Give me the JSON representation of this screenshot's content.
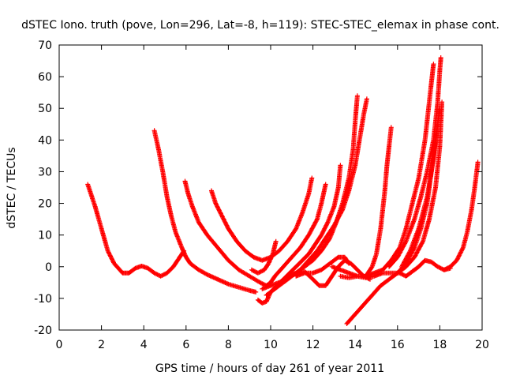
{
  "chart_data": {
    "type": "scatter",
    "title": "dSTEC Iono. truth (pove, Lon=296, Lat=-8, h=119): STEC-STEC_elemax in phase cont.",
    "xlabel": "GPS time / hours of day 261 of year 2011",
    "ylabel": "dSTEC  / TECUs",
    "xlim": [
      0,
      20
    ],
    "ylim": [
      -20,
      70
    ],
    "xticks": [
      "0",
      "2",
      "4",
      "6",
      "8",
      "10",
      "12",
      "14",
      "16",
      "18",
      "20"
    ],
    "yticks": [
      "-20",
      "-10",
      "0",
      "10",
      "20",
      "30",
      "40",
      "50",
      "60",
      "70"
    ],
    "grid": false,
    "legend": "none",
    "marker": "plus",
    "color": "#ff0000",
    "series": [
      {
        "points": [
          [
            1.35,
            26
          ],
          [
            1.5,
            23
          ],
          [
            1.7,
            19
          ],
          [
            2.0,
            12
          ],
          [
            2.3,
            5
          ],
          [
            2.6,
            1
          ],
          [
            3.0,
            -2
          ],
          [
            3.3,
            -2
          ],
          [
            3.6,
            -0.5
          ],
          [
            3.9,
            0.2
          ],
          [
            4.2,
            -0.5
          ],
          [
            4.5,
            -2
          ],
          [
            4.8,
            -3
          ],
          [
            5.1,
            -2
          ],
          [
            5.4,
            0
          ],
          [
            5.7,
            3
          ],
          [
            5.9,
            5
          ]
        ]
      },
      {
        "points": [
          [
            4.5,
            43
          ],
          [
            4.7,
            37
          ],
          [
            4.9,
            30
          ],
          [
            5.1,
            22
          ],
          [
            5.3,
            16
          ],
          [
            5.5,
            11
          ],
          [
            5.8,
            6
          ],
          [
            6.0,
            3
          ],
          [
            6.2,
            1
          ],
          [
            6.6,
            -1
          ],
          [
            7.0,
            -2.5
          ],
          [
            7.5,
            -4
          ],
          [
            8.0,
            -5.5
          ],
          [
            8.5,
            -6.5
          ],
          [
            9.0,
            -7.5
          ],
          [
            9.3,
            -8
          ]
        ]
      },
      {
        "points": [
          [
            5.95,
            27
          ],
          [
            6.1,
            23
          ],
          [
            6.3,
            19
          ],
          [
            6.6,
            14
          ],
          [
            7.0,
            10
          ],
          [
            7.5,
            6
          ],
          [
            8.0,
            2
          ],
          [
            8.5,
            -1
          ],
          [
            9.0,
            -3
          ],
          [
            9.5,
            -5
          ],
          [
            9.8,
            -6
          ],
          [
            10.0,
            -5
          ],
          [
            10.2,
            -3
          ],
          [
            10.6,
            0
          ],
          [
            11.0,
            3
          ],
          [
            11.4,
            6
          ],
          [
            11.8,
            10
          ],
          [
            12.2,
            15
          ],
          [
            12.4,
            20
          ],
          [
            12.6,
            26
          ]
        ]
      },
      {
        "points": [
          [
            7.2,
            24
          ],
          [
            7.4,
            20
          ],
          [
            7.7,
            16
          ],
          [
            8.0,
            12
          ],
          [
            8.4,
            8
          ],
          [
            8.8,
            5
          ],
          [
            9.2,
            3
          ],
          [
            9.6,
            2
          ],
          [
            10.0,
            3
          ],
          [
            10.4,
            5
          ],
          [
            10.8,
            8
          ],
          [
            11.2,
            12
          ],
          [
            11.5,
            17
          ],
          [
            11.8,
            23
          ],
          [
            11.95,
            28
          ]
        ]
      },
      {
        "points": [
          [
            9.1,
            -1
          ],
          [
            9.4,
            -2
          ],
          [
            9.7,
            -1
          ],
          [
            9.9,
            1
          ],
          [
            10.1,
            4
          ],
          [
            10.25,
            8
          ]
        ]
      },
      {
        "points": [
          [
            9.4,
            -10.5
          ],
          [
            9.6,
            -11.5
          ],
          [
            9.8,
            -11
          ],
          [
            10.0,
            -8
          ],
          [
            10.3,
            -6
          ],
          [
            10.6,
            -4
          ],
          [
            10.9,
            -2
          ],
          [
            11.2,
            0
          ],
          [
            11.5,
            2
          ],
          [
            11.8,
            4
          ],
          [
            12.1,
            7
          ],
          [
            12.4,
            10
          ],
          [
            12.7,
            14
          ],
          [
            13.0,
            19
          ],
          [
            13.2,
            25
          ],
          [
            13.3,
            32
          ]
        ]
      },
      {
        "points": [
          [
            9.6,
            -7
          ],
          [
            10.0,
            -6
          ],
          [
            10.4,
            -5
          ],
          [
            10.8,
            -3.5
          ],
          [
            11.2,
            -2
          ],
          [
            11.6,
            0
          ],
          [
            12.0,
            2
          ],
          [
            12.4,
            5
          ],
          [
            12.8,
            9
          ],
          [
            13.1,
            14
          ],
          [
            13.4,
            20
          ],
          [
            13.7,
            28
          ],
          [
            13.9,
            37
          ],
          [
            14.0,
            46
          ],
          [
            14.1,
            54
          ]
        ]
      },
      {
        "points": [
          [
            9.8,
            -9
          ],
          [
            10.2,
            -7
          ],
          [
            10.6,
            -5
          ],
          [
            11.0,
            -3
          ],
          [
            11.4,
            -1
          ],
          [
            11.8,
            2
          ],
          [
            12.2,
            5
          ],
          [
            12.6,
            9
          ],
          [
            13.0,
            13
          ],
          [
            13.4,
            18
          ],
          [
            13.7,
            24
          ],
          [
            14.0,
            32
          ],
          [
            14.2,
            40
          ],
          [
            14.4,
            48
          ],
          [
            14.55,
            53
          ]
        ]
      },
      {
        "points": [
          [
            10.8,
            -3
          ],
          [
            11.2,
            -2
          ],
          [
            11.6,
            -1.5
          ],
          [
            12.0,
            -4
          ],
          [
            12.3,
            -6
          ],
          [
            12.6,
            -6
          ],
          [
            12.9,
            -3
          ],
          [
            13.2,
            0
          ],
          [
            13.5,
            2
          ],
          [
            13.8,
            1
          ],
          [
            14.1,
            -1
          ],
          [
            14.4,
            -3
          ],
          [
            14.7,
            -4
          ]
        ]
      },
      {
        "points": [
          [
            11.2,
            -3
          ],
          [
            11.6,
            -2
          ],
          [
            12.0,
            -2
          ],
          [
            12.4,
            -1
          ],
          [
            12.8,
            1
          ],
          [
            13.2,
            3
          ],
          [
            13.5,
            3
          ],
          [
            13.7,
            1
          ]
        ]
      },
      {
        "points": [
          [
            12.9,
            0
          ],
          [
            13.3,
            -1
          ],
          [
            13.7,
            -2
          ],
          [
            14.1,
            -3
          ],
          [
            14.5,
            -3
          ],
          [
            14.8,
            0
          ],
          [
            15.0,
            4
          ],
          [
            15.2,
            12
          ],
          [
            15.4,
            24
          ],
          [
            15.5,
            32
          ],
          [
            15.6,
            38
          ],
          [
            15.7,
            44
          ]
        ]
      },
      {
        "points": [
          [
            13.3,
            -3
          ],
          [
            13.7,
            -3.5
          ],
          [
            14.1,
            -3
          ],
          [
            14.5,
            -3.5
          ],
          [
            14.9,
            -3
          ],
          [
            15.3,
            -2
          ],
          [
            15.7,
            -2
          ],
          [
            16.1,
            -2
          ],
          [
            16.4,
            -3
          ],
          [
            16.7,
            -1.5
          ],
          [
            17.0,
            0
          ],
          [
            17.3,
            2
          ],
          [
            17.6,
            1.5
          ],
          [
            17.9,
            0
          ],
          [
            18.2,
            -1
          ],
          [
            18.5,
            -0.5
          ]
        ]
      },
      {
        "points": [
          [
            13.6,
            -18
          ],
          [
            14.0,
            -15
          ],
          [
            14.4,
            -12
          ],
          [
            14.8,
            -9
          ],
          [
            15.2,
            -6
          ],
          [
            15.6,
            -4
          ],
          [
            16.0,
            -2
          ],
          [
            16.4,
            0
          ],
          [
            16.8,
            3
          ],
          [
            17.2,
            8
          ],
          [
            17.5,
            15
          ],
          [
            17.8,
            25
          ],
          [
            18.0,
            38
          ],
          [
            18.1,
            52
          ]
        ]
      },
      {
        "points": [
          [
            14.5,
            -3
          ],
          [
            14.9,
            -2
          ],
          [
            15.3,
            -1
          ],
          [
            15.7,
            2
          ],
          [
            16.1,
            6
          ],
          [
            16.4,
            12
          ],
          [
            16.7,
            20
          ],
          [
            17.0,
            28
          ],
          [
            17.3,
            40
          ],
          [
            17.5,
            52
          ],
          [
            17.6,
            58
          ],
          [
            17.7,
            64
          ]
        ]
      },
      {
        "points": [
          [
            15.6,
            0
          ],
          [
            16.0,
            3
          ],
          [
            16.4,
            8
          ],
          [
            16.8,
            15
          ],
          [
            17.1,
            22
          ],
          [
            17.4,
            30
          ],
          [
            17.7,
            40
          ],
          [
            17.9,
            52
          ],
          [
            18.0,
            62
          ],
          [
            18.05,
            66
          ]
        ]
      },
      {
        "points": [
          [
            16.0,
            -2
          ],
          [
            16.4,
            1
          ],
          [
            16.8,
            6
          ],
          [
            17.1,
            12
          ],
          [
            17.4,
            20
          ],
          [
            17.6,
            30
          ],
          [
            17.8,
            40
          ],
          [
            17.9,
            45
          ]
        ]
      },
      {
        "points": [
          [
            16.2,
            0
          ],
          [
            16.6,
            5
          ],
          [
            17.0,
            12
          ],
          [
            17.4,
            22
          ],
          [
            17.7,
            34
          ],
          [
            17.9,
            45
          ],
          [
            18.0,
            50
          ]
        ]
      },
      {
        "points": [
          [
            18.2,
            -1
          ],
          [
            18.5,
            0
          ],
          [
            18.8,
            2
          ],
          [
            19.1,
            6
          ],
          [
            19.3,
            11
          ],
          [
            19.5,
            18
          ],
          [
            19.65,
            25
          ],
          [
            19.8,
            33
          ]
        ]
      }
    ]
  }
}
